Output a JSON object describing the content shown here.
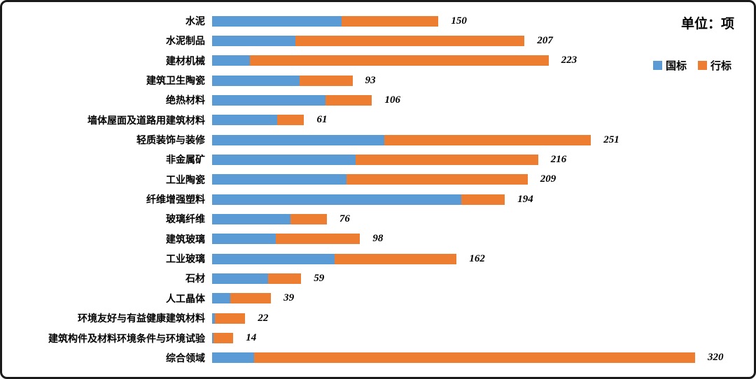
{
  "unit_label": "单位：项",
  "legend": [
    {
      "name": "国标",
      "color": "#5B9BD5"
    },
    {
      "name": "行标",
      "color": "#ED7D31"
    }
  ],
  "chart_data": {
    "type": "bar",
    "orientation": "horizontal",
    "stacked": true,
    "title": "",
    "xlabel": "",
    "ylabel": "",
    "unit": "单位：项",
    "legend_position": "top-right",
    "grid": false,
    "xlim": [
      0,
      330
    ],
    "categories": [
      "水泥",
      "水泥制品",
      "建材机械",
      "建筑卫生陶瓷",
      "绝热材料",
      "墙体屋面及道路用建筑材料",
      "轻质装饰与装修",
      "非金属矿",
      "工业陶瓷",
      "纤维增强塑料",
      "玻璃纤维",
      "建筑玻璃",
      "工业玻璃",
      "石材",
      "人工晶体",
      "环境友好与有益健康建筑材料",
      "建筑构件及材料环境条件与环境试验",
      "综合领域"
    ],
    "series": [
      {
        "name": "国标",
        "color": "#5B9BD5",
        "values": [
          86,
          55,
          25,
          58,
          75,
          43,
          114,
          95,
          89,
          165,
          52,
          42,
          81,
          37,
          12,
          2,
          1,
          28
        ]
      },
      {
        "name": "行标",
        "color": "#ED7D31",
        "values": [
          64,
          152,
          198,
          35,
          31,
          18,
          137,
          121,
          120,
          29,
          24,
          56,
          81,
          22,
          27,
          20,
          13,
          292
        ]
      }
    ],
    "totals": [
      150,
      207,
      223,
      93,
      106,
      61,
      251,
      216,
      209,
      194,
      76,
      98,
      162,
      59,
      39,
      22,
      14,
      320
    ]
  }
}
